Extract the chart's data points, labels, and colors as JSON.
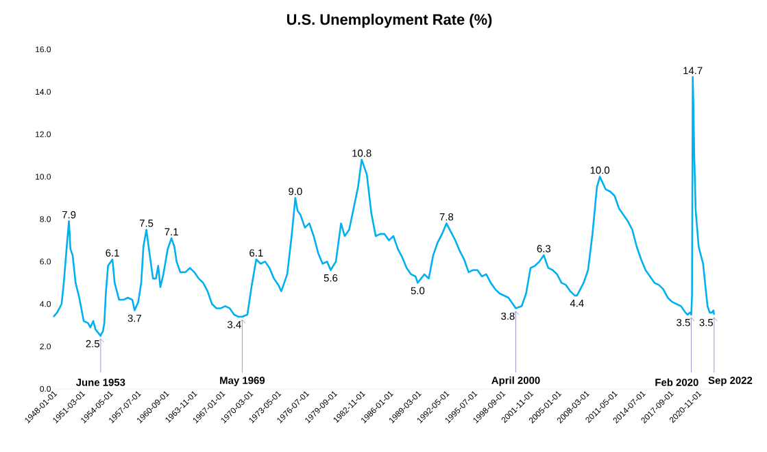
{
  "chart_data": {
    "type": "line",
    "title": "U.S. Unemployment Rate (%)",
    "x": [
      "1948-01",
      "1948-06",
      "1948-12",
      "1949-03",
      "1949-07",
      "1949-10",
      "1949-12",
      "1950-03",
      "1950-07",
      "1950-12",
      "1951-06",
      "1951-12",
      "1952-03",
      "1952-07",
      "1952-10",
      "1953-05",
      "1953-06",
      "1953-08",
      "1953-10",
      "1953-12",
      "1954-03",
      "1954-09",
      "1954-12",
      "1955-06",
      "1955-12",
      "1956-06",
      "1956-12",
      "1957-03",
      "1957-08",
      "1957-12",
      "1958-03",
      "1958-07",
      "1958-12",
      "1959-04",
      "1959-08",
      "1959-11",
      "1960-02",
      "1960-06",
      "1960-12",
      "1961-05",
      "1961-09",
      "1961-12",
      "1962-05",
      "1962-12",
      "1963-06",
      "1963-12",
      "1964-06",
      "1964-12",
      "1965-06",
      "1965-12",
      "1966-06",
      "1966-12",
      "1967-06",
      "1967-12",
      "1968-06",
      "1968-12",
      "1969-05",
      "1969-12",
      "1970-06",
      "1970-12",
      "1971-06",
      "1971-12",
      "1972-06",
      "1972-12",
      "1973-06",
      "1973-10",
      "1974-06",
      "1974-12",
      "1975-05",
      "1975-08",
      "1975-12",
      "1976-06",
      "1976-12",
      "1977-06",
      "1977-12",
      "1978-06",
      "1978-12",
      "1979-05",
      "1979-12",
      "1980-07",
      "1980-12",
      "1981-06",
      "1981-12",
      "1982-06",
      "1982-11",
      "1983-06",
      "1983-12",
      "1984-06",
      "1984-12",
      "1985-06",
      "1985-12",
      "1986-06",
      "1986-12",
      "1987-06",
      "1987-12",
      "1988-06",
      "1988-12",
      "1989-03",
      "1989-12",
      "1990-06",
      "1990-12",
      "1991-06",
      "1991-12",
      "1992-06",
      "1992-12",
      "1993-06",
      "1993-12",
      "1994-06",
      "1994-12",
      "1995-06",
      "1995-12",
      "1996-06",
      "1996-12",
      "1997-06",
      "1997-12",
      "1998-06",
      "1998-12",
      "1999-06",
      "1999-12",
      "2000-04",
      "2000-12",
      "2001-06",
      "2001-12",
      "2002-06",
      "2002-12",
      "2003-06",
      "2003-12",
      "2004-06",
      "2004-12",
      "2005-06",
      "2005-12",
      "2006-06",
      "2006-12",
      "2007-03",
      "2007-12",
      "2008-06",
      "2008-12",
      "2009-06",
      "2009-10",
      "2010-06",
      "2010-12",
      "2011-06",
      "2011-12",
      "2012-06",
      "2012-12",
      "2013-06",
      "2013-12",
      "2014-06",
      "2014-12",
      "2015-06",
      "2015-12",
      "2016-06",
      "2016-12",
      "2017-06",
      "2017-12",
      "2018-06",
      "2018-12",
      "2019-06",
      "2019-09",
      "2019-12",
      "2020-02",
      "2020-03",
      "2020-04",
      "2020-05",
      "2020-06",
      "2020-08",
      "2020-12",
      "2021-06",
      "2021-12",
      "2022-03",
      "2022-06",
      "2022-08",
      "2022-09"
    ],
    "series": [
      {
        "color": "#00b0f0",
        "values": [
          3.4,
          3.6,
          4.0,
          5.0,
          6.7,
          7.9,
          6.6,
          6.3,
          5.0,
          4.3,
          3.2,
          3.1,
          2.9,
          3.2,
          2.8,
          2.5,
          2.6,
          2.7,
          3.1,
          4.5,
          5.8,
          6.1,
          5.0,
          4.2,
          4.2,
          4.3,
          4.2,
          3.7,
          4.1,
          5.0,
          6.7,
          7.5,
          6.2,
          5.2,
          5.2,
          5.8,
          4.8,
          5.4,
          6.6,
          7.1,
          6.7,
          6.0,
          5.5,
          5.5,
          5.7,
          5.5,
          5.2,
          5.0,
          4.6,
          4.0,
          3.8,
          3.8,
          3.9,
          3.8,
          3.5,
          3.4,
          3.4,
          3.5,
          4.9,
          6.1,
          5.9,
          6.0,
          5.7,
          5.2,
          4.9,
          4.6,
          5.4,
          7.2,
          9.0,
          8.4,
          8.2,
          7.6,
          7.8,
          7.2,
          6.4,
          5.9,
          6.0,
          5.6,
          6.0,
          7.8,
          7.2,
          7.5,
          8.5,
          9.5,
          10.8,
          10.1,
          8.3,
          7.2,
          7.3,
          7.3,
          7.0,
          7.2,
          6.6,
          6.2,
          5.7,
          5.4,
          5.3,
          5.0,
          5.4,
          5.2,
          6.3,
          6.9,
          7.3,
          7.8,
          7.4,
          7.0,
          6.5,
          6.1,
          5.5,
          5.6,
          5.6,
          5.3,
          5.4,
          5.0,
          4.7,
          4.5,
          4.4,
          4.3,
          4.0,
          3.8,
          3.9,
          4.5,
          5.7,
          5.8,
          6.0,
          6.3,
          5.7,
          5.6,
          5.4,
          5.0,
          4.9,
          4.6,
          4.4,
          4.4,
          5.0,
          5.6,
          7.3,
          9.5,
          10.0,
          9.4,
          9.3,
          9.1,
          8.5,
          8.2,
          7.9,
          7.5,
          6.7,
          6.1,
          5.6,
          5.3,
          5.0,
          4.9,
          4.7,
          4.3,
          4.1,
          4.0,
          3.9,
          3.6,
          3.5,
          3.6,
          3.5,
          4.4,
          14.7,
          13.2,
          11.0,
          8.4,
          6.7,
          5.9,
          3.9,
          3.6,
          3.6,
          3.7,
          3.5
        ]
      }
    ],
    "xlim": [
      "1948-01",
      "2023-12"
    ],
    "xticks": [
      "1948-01-01",
      "1951-03-01",
      "1954-05-01",
      "1957-07-01",
      "1960-09-01",
      "1963-11-01",
      "1967-01-01",
      "1970-03-01",
      "1973-05-01",
      "1976-07-01",
      "1979-09-01",
      "1982-11-01",
      "1986-01-01",
      "1989-03-01",
      "1992-05-01",
      "1995-07-01",
      "1998-09-01",
      "2001-11-01",
      "2005-01-01",
      "2008-03-01",
      "2011-05-01",
      "2014-07-01",
      "2017-09-01",
      "2020-11-01"
    ],
    "ylim": [
      0,
      16
    ],
    "yticks": [
      {
        "value": 0,
        "label": "0.0"
      },
      {
        "value": 2,
        "label": "2.0"
      },
      {
        "value": 4,
        "label": "4.0"
      },
      {
        "value": 6,
        "label": "6.0"
      },
      {
        "value": 8,
        "label": "8.0"
      },
      {
        "value": 10,
        "label": "10.0"
      },
      {
        "value": 12,
        "label": "12.0"
      },
      {
        "value": 14,
        "label": "14.0"
      },
      {
        "value": 16,
        "label": "16.0"
      }
    ],
    "annotations": [
      {
        "text": "7.9",
        "x": "1949-10",
        "y": 7.9
      },
      {
        "text": "2.5",
        "x": "1953-05",
        "y": 2.5
      },
      {
        "text": "6.1",
        "x": "1954-09",
        "y": 6.1
      },
      {
        "text": "3.7",
        "x": "1957-03",
        "y": 3.7
      },
      {
        "text": "7.5",
        "x": "1958-07",
        "y": 7.5
      },
      {
        "text": "7.1",
        "x": "1961-05",
        "y": 7.1
      },
      {
        "text": "3.4",
        "x": "1969-05",
        "y": 3.4
      },
      {
        "text": "6.1",
        "x": "1970-12",
        "y": 6.1
      },
      {
        "text": "9.0",
        "x": "1975-05",
        "y": 9.0
      },
      {
        "text": "5.6",
        "x": "1979-05",
        "y": 5.6
      },
      {
        "text": "10.8",
        "x": "1982-11",
        "y": 10.8
      },
      {
        "text": "5.0",
        "x": "1989-03",
        "y": 5.0
      },
      {
        "text": "7.8",
        "x": "1992-06",
        "y": 7.8
      },
      {
        "text": "3.8",
        "x": "2000-04",
        "y": 3.8
      },
      {
        "text": "6.3",
        "x": "2003-06",
        "y": 6.3
      },
      {
        "text": "4.4",
        "x": "2007-03",
        "y": 4.4
      },
      {
        "text": "10.0",
        "x": "2009-10",
        "y": 10.0
      },
      {
        "text": "3.5",
        "x": "2020-02",
        "y": 3.5
      },
      {
        "text": "14.7",
        "x": "2020-04",
        "y": 14.7
      },
      {
        "text": "3.5",
        "x": "2022-09",
        "y": 3.5
      },
      {
        "text": "June 1953",
        "x": "1953-05",
        "y": 2.5
      },
      {
        "text": "May 1969",
        "x": "1969-05",
        "y": 3.4
      },
      {
        "text": "April 2000",
        "x": "2000-04",
        "y": 3.8
      },
      {
        "text": "Feb 2020",
        "x": "2020-02",
        "y": 3.5
      },
      {
        "text": "Sep 2022",
        "x": "2022-09",
        "y": 3.5
      }
    ]
  }
}
